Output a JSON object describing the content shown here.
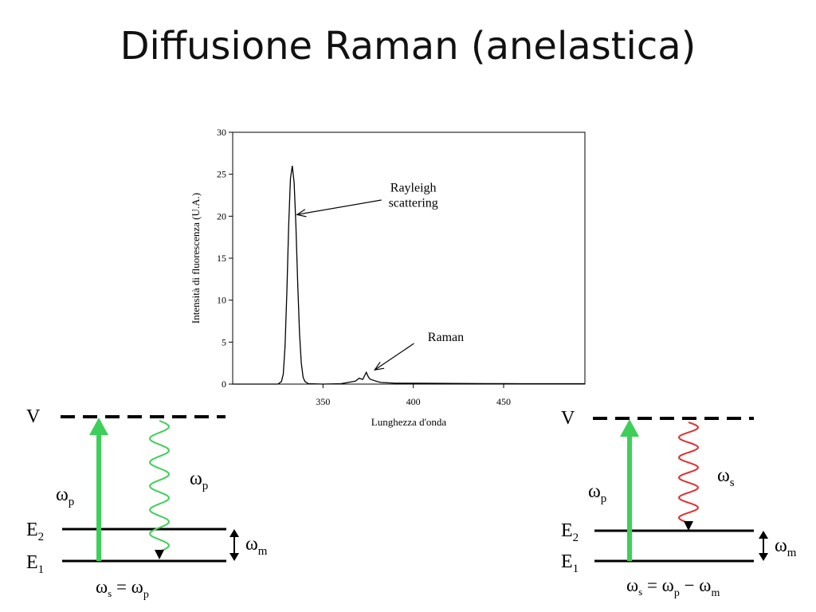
{
  "slide": {
    "title": "Diffusione Raman (anelastica)"
  },
  "chart_data": {
    "type": "line",
    "title": "",
    "xlabel": "Lunghezza d'onda",
    "ylabel": "Intensità di fluorescenza (U.A.)",
    "xlim": [
      300,
      495
    ],
    "ylim": [
      0,
      30
    ],
    "x_ticks": [
      350,
      400,
      450
    ],
    "y_ticks": [
      0,
      5,
      10,
      15,
      20,
      25,
      30
    ],
    "grid": false,
    "legend": "none",
    "series": [
      {
        "x": [
          300,
          325,
          327,
          328,
          329,
          330,
          331,
          332,
          333,
          334,
          335,
          336,
          337,
          338,
          339,
          340,
          342,
          350,
          360,
          368,
          370,
          372,
          373,
          374,
          375,
          376,
          378,
          380,
          382,
          390,
          400,
          420,
          440,
          460,
          480,
          495
        ],
        "y": [
          0,
          0,
          0.3,
          1.2,
          4.5,
          11,
          19,
          24.5,
          26,
          24,
          19,
          12,
          6,
          2.5,
          0.8,
          0.3,
          0.05,
          0,
          0.05,
          0.35,
          0.7,
          0.55,
          1.0,
          1.4,
          0.9,
          0.6,
          0.45,
          0.3,
          0.2,
          0.1,
          0.1,
          0.08,
          0.06,
          0.05,
          0.05,
          0.05
        ]
      }
    ],
    "annotations": [
      {
        "text": [
          "Rayleigh",
          "scattering"
        ],
        "target": {
          "x": 333,
          "y": 20
        },
        "at": {
          "x": 400,
          "y": 22.5
        }
      },
      {
        "text": [
          "Raman"
        ],
        "target": {
          "x": 376,
          "y": 1.5
        },
        "at": {
          "x": 418,
          "y": 5.6
        }
      }
    ]
  },
  "diagrams": {
    "rayleigh": {
      "virtual_level": "V",
      "e2": "E",
      "e2_sub": "2",
      "e1": "E",
      "e1_sub": "1",
      "pump_label": "ω",
      "pump_sub": "p",
      "scatter_label": "ω",
      "scatter_sub": "p",
      "vib_label": "ω",
      "vib_sub": "m",
      "relation": "ωs = ωp",
      "pump_color": "#3ecf5a",
      "scatter_color": "#3ecf5a"
    },
    "raman": {
      "virtual_level": "V",
      "e2": "E",
      "e2_sub": "2",
      "e1": "E",
      "e1_sub": "1",
      "pump_label": "ω",
      "pump_sub": "p",
      "scatter_label": "ω",
      "scatter_sub": "s",
      "vib_label": "ω",
      "vib_sub": "m",
      "relation": "ωs = ωp − ωm",
      "pump_color": "#3ecf5a",
      "scatter_color": "#e03030"
    }
  }
}
